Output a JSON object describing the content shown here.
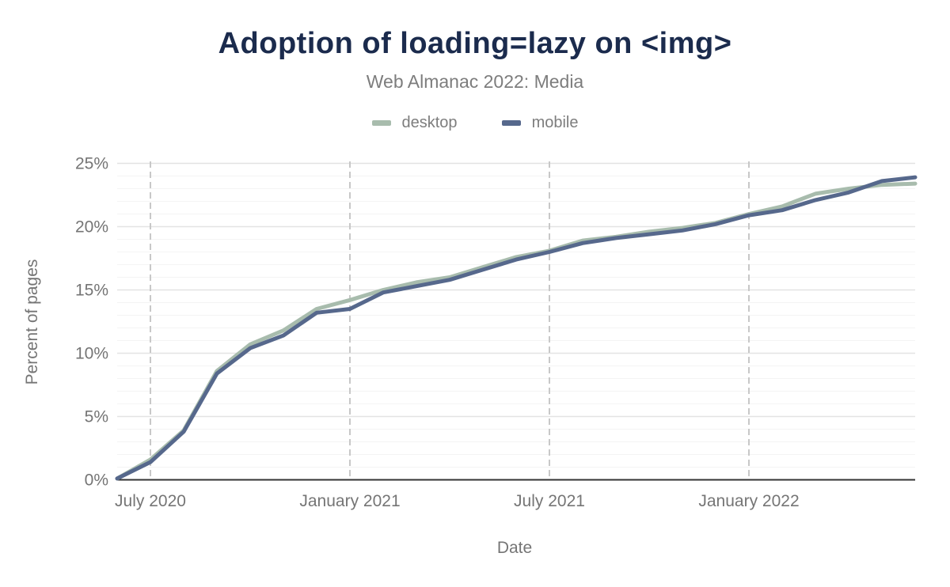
{
  "chart_data": {
    "type": "line",
    "title": "Adoption of loading=lazy on <img>",
    "subtitle": "Web Almanac 2022: Media",
    "xlabel": "Date",
    "ylabel": "Percent of pages",
    "x": [
      "2020-06-01",
      "2020-07-01",
      "2020-08-01",
      "2020-09-01",
      "2020-10-01",
      "2020-11-01",
      "2020-12-01",
      "2021-01-01",
      "2021-02-01",
      "2021-03-01",
      "2021-04-01",
      "2021-05-01",
      "2021-06-01",
      "2021-07-01",
      "2021-08-01",
      "2021-09-01",
      "2021-10-01",
      "2021-11-01",
      "2021-12-01",
      "2022-01-01",
      "2022-02-01",
      "2022-03-01",
      "2022-04-01",
      "2022-05-01",
      "2022-06-01"
    ],
    "series": [
      {
        "name": "desktop",
        "color": "#a8bcad",
        "values": [
          0.1,
          1.6,
          3.9,
          8.6,
          10.7,
          11.8,
          13.5,
          14.2,
          15.0,
          15.6,
          16.0,
          16.8,
          17.6,
          18.1,
          18.9,
          19.2,
          19.6,
          19.9,
          20.3,
          21.0,
          21.6,
          22.6,
          23.0,
          23.3,
          23.4
        ]
      },
      {
        "name": "mobile",
        "color": "#56688c",
        "values": [
          0.1,
          1.4,
          3.8,
          8.4,
          10.4,
          11.4,
          13.2,
          13.5,
          14.8,
          15.3,
          15.8,
          16.6,
          17.4,
          18.0,
          18.7,
          19.1,
          19.4,
          19.7,
          20.2,
          20.9,
          21.3,
          22.1,
          22.7,
          23.6,
          23.9
        ]
      }
    ],
    "ylim": [
      0,
      25
    ],
    "y_ticks": [
      0,
      5,
      10,
      15,
      20,
      25
    ],
    "y_tick_suffix": "%",
    "y_minor_step": 1,
    "x_ticks": [
      {
        "index": 1,
        "label": "July 2020"
      },
      {
        "index": 7,
        "label": "January 2021"
      },
      {
        "index": 13,
        "label": "July 2021"
      },
      {
        "index": 19,
        "label": "January 2022"
      }
    ],
    "grid": {
      "horizontal_major": "solid",
      "horizontal_minor": "solid",
      "vertical": "dashed"
    },
    "legend_position": "top",
    "colors": {
      "background": "#ffffff",
      "title": "#1b2b4d",
      "text": "#7d7d7d",
      "tick_text": "#757575",
      "axis_line": "#333333",
      "grid_major": "#e3e3e3",
      "grid_minor": "#f4f4f4",
      "grid_vertical_dashed": "#c8c8c8"
    }
  }
}
